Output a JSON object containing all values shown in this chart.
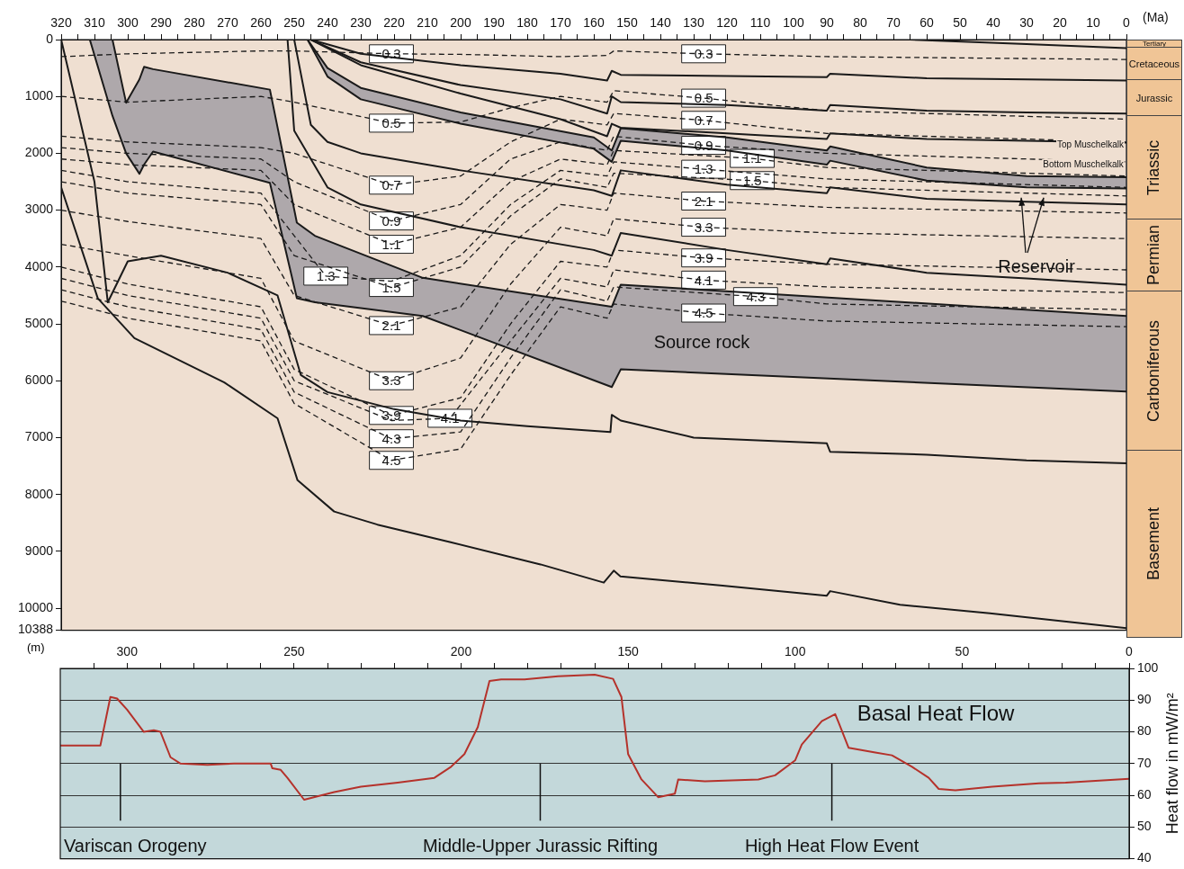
{
  "chart_data": [
    {
      "type": "line",
      "xlabel": "(Ma)",
      "ylabel": "(m)",
      "legend": false,
      "grid": false,
      "xlim": [
        320,
        0
      ],
      "xticks": [
        320,
        {
          "value": 315,
          "label": null
        },
        310,
        {
          "value": 305,
          "label": null
        },
        300,
        {
          "value": 295,
          "label": null
        },
        290,
        {
          "value": 285,
          "label": null
        },
        280,
        {
          "value": 275,
          "label": null
        },
        270,
        {
          "value": 265,
          "label": null
        },
        260,
        {
          "value": 255,
          "label": null
        },
        250,
        {
          "value": 245,
          "label": null
        },
        240,
        {
          "value": 235,
          "label": null
        },
        230,
        {
          "value": 225,
          "label": null
        },
        220,
        {
          "value": 215,
          "label": null
        },
        210,
        {
          "value": 205,
          "label": null
        },
        200,
        {
          "value": 195,
          "label": null
        },
        190,
        {
          "value": 185,
          "label": null
        },
        180,
        {
          "value": 175,
          "label": null
        },
        170,
        {
          "value": 165,
          "label": null
        },
        160,
        {
          "value": 155,
          "label": null
        },
        150,
        {
          "value": 145,
          "label": null
        },
        140,
        {
          "value": 135,
          "label": null
        },
        130,
        {
          "value": 125,
          "label": null
        },
        120,
        {
          "value": 115,
          "label": null
        },
        110,
        {
          "value": 105,
          "label": null
        },
        100,
        {
          "value": 95,
          "label": null
        },
        90,
        {
          "value": 85,
          "label": null
        },
        80,
        {
          "value": 75,
          "label": null
        },
        70,
        {
          "value": 65,
          "label": null
        },
        60,
        {
          "value": 55,
          "label": null
        },
        50,
        {
          "value": 45,
          "label": null
        },
        40,
        {
          "value": 35,
          "label": null
        },
        30,
        {
          "value": 25,
          "label": null
        },
        20,
        {
          "value": 15,
          "label": null
        },
        10,
        {
          "value": 5,
          "label": null
        },
        0
      ],
      "ylim": [
        10388,
        0
      ],
      "yticks": [
        0,
        1000,
        2000,
        3000,
        4000,
        5000,
        6000,
        7000,
        8000,
        9000,
        10000,
        10388
      ],
      "series": [
        {
          "color": "#1a1a1a",
          "x": [
            65,
            30,
            0
          ],
          "values": [
            0,
            80,
            150
          ]
        },
        {
          "color": "#1a1a1a",
          "x": [
            245,
            230,
            200,
            170,
            156,
            154.6,
            151.9,
            120,
            90,
            89,
            60,
            30,
            0
          ],
          "values": [
            0,
            250,
            450,
            600,
            720,
            550,
            620,
            640,
            660,
            600,
            680,
            700,
            720
          ]
        },
        {
          "color": "#1a1a1a",
          "x": [
            245,
            230,
            200,
            170,
            156,
            154.6,
            151.9,
            120,
            90,
            89,
            60,
            30,
            0
          ],
          "values": [
            0,
            400,
            800,
            1050,
            1300,
            1000,
            1100,
            1150,
            1250,
            1150,
            1250,
            1280,
            1300
          ]
        },
        {
          "color": "#1a1a1a",
          "x": [
            245,
            230,
            200,
            170,
            156,
            154.6,
            151.9,
            120,
            90,
            89,
            60,
            30,
            0
          ],
          "values": [
            0,
            450,
            950,
            1400,
            1700,
            1480,
            1550,
            1650,
            1750,
            1650,
            1750,
            1780,
            1810
          ]
        },
        {
          "color": "#1a1a1a",
          "x": [
            246,
            240,
            230,
            200,
            160,
            154.6,
            151.9,
            120,
            90,
            89,
            60,
            30,
            0
          ],
          "values": [
            0,
            500,
            850,
            1280,
            1720,
            1950,
            1560,
            1720,
            1950,
            1880,
            2250,
            2400,
            2420
          ],
          "upper": [
            0,
            500,
            850,
            1280,
            1720,
            1950,
            1560,
            1720,
            1950,
            1880,
            2250,
            2400,
            2420
          ],
          "lower": [
            0,
            650,
            1050,
            1480,
            1920,
            2150,
            1780,
            1950,
            2200,
            2130,
            2480,
            2600,
            2620
          ]
        },
        {
          "color": "#1a1a1a",
          "x": [
            246,
            240,
            230,
            200,
            160,
            154.6,
            151.9,
            120,
            90,
            89,
            60,
            30,
            0
          ],
          "values": [
            0,
            650,
            1050,
            1480,
            1920,
            2150,
            1780,
            1950,
            2200,
            2130,
            2480,
            2600,
            2620
          ]
        },
        {
          "color": "#1a1a1a",
          "x": [
            250,
            245,
            240,
            230,
            200,
            160,
            154.6,
            151.9,
            120,
            90,
            89,
            60,
            30,
            0
          ],
          "values": [
            0,
            1500,
            1800,
            2000,
            2300,
            2650,
            2750,
            2300,
            2550,
            2700,
            2600,
            2800,
            2850,
            2900
          ]
        },
        {
          "color": "#1a1a1a",
          "x": [
            252,
            250,
            240,
            230,
            200,
            160,
            154.6,
            151.9,
            120,
            90,
            89,
            60,
            30,
            0
          ],
          "values": [
            0,
            1600,
            2600,
            2900,
            3300,
            3700,
            3800,
            3400,
            3700,
            3950,
            3850,
            4100,
            4200,
            4310
          ]
        },
        {
          "color": "#1a1a1a",
          "x": [
            311.4,
            304.6,
            300.5,
            296.5,
            295.1,
            292.4,
            257.3,
            249.2,
            243.8,
            211.4,
            154.6,
            151.9,
            0
          ],
          "values": [
            0,
            0,
            1110,
            700,
            480,
            520,
            880,
            3220,
            3450,
            4190,
            4700,
            4310,
            4860
          ],
          "upper": [
            0,
            0,
            1110,
            700,
            480,
            520,
            880,
            3220,
            3450,
            4190,
            4700,
            4310,
            4860
          ],
          "lower": [
            0,
            1340,
            2000,
            2360,
            2200,
            1970,
            2520,
            4550,
            4620,
            4860,
            6110,
            5800,
            6190
          ]
        },
        {
          "color": "#1a1a1a",
          "x": [
            311.4,
            304.6,
            300.5,
            296.5,
            295.1,
            292.4,
            257.3,
            249.2,
            243.8,
            211.4,
            154.6,
            151.9,
            0
          ],
          "values": [
            0,
            1340,
            2000,
            2360,
            2200,
            1970,
            2520,
            4550,
            4620,
            4860,
            6110,
            5800,
            6190
          ]
        },
        {
          "color": "#1a1a1a",
          "x": [
            320,
            310,
            306,
            300,
            290,
            270,
            255,
            248,
            240,
            220,
            200,
            180,
            155,
            154.6,
            151.9,
            130,
            90,
            89,
            60,
            30,
            0
          ],
          "values": [
            0,
            2500,
            4620,
            3900,
            3800,
            4100,
            4500,
            5900,
            6200,
            6500,
            6700,
            6800,
            6900,
            6600,
            6700,
            7000,
            7100,
            7250,
            7300,
            7400,
            7450
          ]
        },
        {
          "color": "#1a1a1a",
          "x": [
            320,
            309,
            298,
            271,
            255,
            249,
            238,
            225,
            203,
            176,
            157,
            154,
            152,
            122,
            90,
            89,
            68,
            41,
            0
          ],
          "values": [
            2600,
            4550,
            5250,
            6030,
            6660,
            7750,
            8300,
            8530,
            8840,
            9230,
            9550,
            9340,
            9440,
            9600,
            9780,
            9700,
            9940,
            10090,
            10350
          ]
        },
        {
          "color": "#1a1a1a",
          "line_style": "dashed",
          "x": [
            320,
            300,
            260,
            250,
            220.8,
            200,
            185,
            170,
            156,
            154,
            127,
            90,
            0
          ],
          "values": [
            300,
            250,
            200,
            200,
            250,
            260,
            280,
            300,
            280,
            200,
            250,
            300,
            350
          ]
        },
        {
          "color": "#1a1a1a",
          "line_style": "dashed",
          "x": [
            320,
            300,
            260,
            250,
            220.8,
            200,
            185,
            170,
            156,
            154,
            127,
            90,
            0
          ],
          "values": [
            1000,
            1100,
            1000,
            1100,
            1470,
            1450,
            1200,
            1000,
            1100,
            900,
            1030,
            1250,
            1400
          ]
        },
        {
          "color": "#1a1a1a",
          "line_style": "dashed",
          "x": [
            320,
            300,
            260,
            250,
            220.8,
            200,
            185,
            170,
            156,
            154,
            127,
            90,
            0
          ],
          "values": [
            1700,
            1800,
            1900,
            2000,
            2560,
            2400,
            1800,
            1400,
            1500,
            1300,
            1420,
            1650,
            1800
          ]
        },
        {
          "color": "#1a1a1a",
          "line_style": "dashed",
          "x": [
            320,
            300,
            260,
            250,
            220.8,
            200,
            185,
            170,
            156,
            154,
            127,
            90,
            0
          ],
          "values": [
            1900,
            2000,
            2100,
            2500,
            3190,
            2900,
            2100,
            1800,
            1950,
            1700,
            1860,
            2000,
            2150
          ]
        },
        {
          "color": "#1a1a1a",
          "line_style": "dashed",
          "x": [
            320,
            300,
            260,
            250,
            220.8,
            200,
            185,
            170,
            156,
            154,
            112.4,
            90,
            0
          ],
          "values": [
            2100,
            2200,
            2300,
            2900,
            3600,
            3300,
            2500,
            2100,
            2200,
            1950,
            2090,
            2250,
            2400
          ]
        },
        {
          "color": "#1a1a1a",
          "line_style": "dashed",
          "x": [
            320,
            300,
            260,
            240.5,
            220.8,
            200,
            185,
            170,
            156,
            154,
            127,
            90,
            0
          ],
          "values": [
            2300,
            2500,
            2700,
            4160,
            4250,
            3800,
            2900,
            2300,
            2400,
            2150,
            2280,
            2450,
            2600
          ]
        },
        {
          "color": "#1a1a1a",
          "line_style": "dashed",
          "x": [
            320,
            300,
            260,
            250,
            220.8,
            200,
            185,
            170,
            156,
            154,
            112.4,
            90,
            0
          ],
          "values": [
            2500,
            2700,
            2900,
            3800,
            4360,
            4000,
            3100,
            2450,
            2600,
            2350,
            2480,
            2600,
            2750
          ]
        },
        {
          "color": "#1a1a1a",
          "line_style": "dashed",
          "x": [
            320,
            300,
            260,
            250,
            220.8,
            200,
            185,
            170,
            156,
            154,
            127,
            90,
            0
          ],
          "values": [
            3000,
            3200,
            3500,
            4500,
            5030,
            4700,
            3600,
            2900,
            3000,
            2700,
            2840,
            2950,
            3050
          ]
        },
        {
          "color": "#1a1a1a",
          "line_style": "dashed",
          "x": [
            320,
            300,
            260,
            250,
            220.8,
            200,
            185,
            170,
            156,
            154,
            127,
            90,
            0
          ],
          "values": [
            3600,
            3800,
            4200,
            5300,
            6000,
            5600,
            4300,
            3300,
            3450,
            3150,
            3300,
            3400,
            3500
          ]
        },
        {
          "color": "#1a1a1a",
          "line_style": "dashed",
          "x": [
            320,
            300,
            260,
            250,
            220.8,
            200,
            185,
            170,
            156,
            154,
            127,
            90,
            0
          ],
          "values": [
            4000,
            4300,
            4700,
            5800,
            6610,
            6300,
            5000,
            3900,
            4000,
            3700,
            3840,
            3950,
            4050
          ]
        },
        {
          "color": "#1a1a1a",
          "line_style": "dashed",
          "x": [
            320,
            300,
            260,
            250,
            220.8,
            203.2,
            185,
            170,
            156,
            154,
            127,
            90,
            0
          ],
          "values": [
            4200,
            4500,
            4900,
            6000,
            6700,
            6660,
            5300,
            4200,
            4350,
            4050,
            4230,
            4350,
            4450
          ]
        },
        {
          "color": "#1a1a1a",
          "line_style": "dashed",
          "x": [
            320,
            300,
            260,
            250,
            220.8,
            200,
            185,
            170,
            156,
            154,
            111.4,
            90,
            0
          ],
          "values": [
            4400,
            4700,
            5100,
            6200,
            7020,
            6900,
            5600,
            4400,
            4600,
            4350,
            4520,
            4650,
            4750
          ]
        },
        {
          "color": "#1a1a1a",
          "line_style": "dashed",
          "x": [
            320,
            300,
            260,
            250,
            220.8,
            200,
            185,
            170,
            156,
            154,
            127,
            90,
            0
          ],
          "values": [
            4600,
            4900,
            5300,
            6400,
            7400,
            7200,
            5900,
            4700,
            4900,
            4650,
            4810,
            4950,
            5050
          ]
        }
      ],
      "annotations": [
        "Source rock",
        {
          "text": "Reservoir",
          "x": 31.6,
          "y": 2780
        },
        "Top Muschelkalk",
        "Bottom Muschelkalk",
        "Tertiary",
        "Cretaceous",
        "Jurassic",
        "Triassic",
        "Permian",
        "Carboniferous",
        "Basement",
        {
          "text": "0.3",
          "x": 220.8,
          "y": 250
        },
        {
          "text": "0.3",
          "x": 127,
          "y": 250
        },
        {
          "text": "0.5",
          "x": 220.8,
          "y": 1470
        },
        {
          "text": "0.5",
          "x": 127,
          "y": 1030
        },
        {
          "text": "0.7",
          "x": 220.8,
          "y": 2560
        },
        {
          "text": "0.7",
          "x": 127,
          "y": 1420
        },
        {
          "text": "0.9",
          "x": 220.8,
          "y": 3190
        },
        {
          "text": "0.9",
          "x": 127,
          "y": 1860
        },
        {
          "text": "1.1",
          "x": 220.8,
          "y": 3600
        },
        {
          "text": "1.1",
          "x": 112.4,
          "y": 2090
        },
        {
          "text": "1.3",
          "x": 240.5,
          "y": 4160
        },
        {
          "text": "1.3",
          "x": 127,
          "y": 2280
        },
        {
          "text": "1.5",
          "x": 220.8,
          "y": 4360
        },
        {
          "text": "1.5",
          "x": 112.4,
          "y": 2480
        },
        {
          "text": "2.1",
          "x": 220.8,
          "y": 5030
        },
        {
          "text": "2.1",
          "x": 127,
          "y": 2840
        },
        {
          "text": "3.3",
          "x": 220.8,
          "y": 6000
        },
        {
          "text": "3.3",
          "x": 127,
          "y": 3300
        },
        {
          "text": "3.9",
          "x": 220.8,
          "y": 6610
        },
        {
          "text": "3.9",
          "x": 127,
          "y": 3840
        },
        {
          "text": "4.1",
          "x": 203.2,
          "y": 6660
        },
        {
          "text": "4.1",
          "x": 127,
          "y": 4230
        },
        {
          "text": "4.3",
          "x": 220.8,
          "y": 7020
        },
        {
          "text": "4.3",
          "x": 111.4,
          "y": 4520
        },
        {
          "text": "4.5",
          "x": 220.8,
          "y": 7400
        },
        {
          "text": "4.5",
          "x": 127,
          "y": 4810
        }
      ]
    },
    {
      "type": "line",
      "legend": false,
      "grid": "y",
      "ylabel": "Heat flow in mW/m²",
      "xlim": [
        320,
        0
      ],
      "xticks": [
        {
          "value": 310,
          "label": null
        },
        300,
        {
          "value": 290,
          "label": null
        },
        {
          "value": 280,
          "label": null
        },
        {
          "value": 270,
          "label": null
        },
        {
          "value": 260,
          "label": null
        },
        250,
        {
          "value": 240,
          "label": null
        },
        {
          "value": 230,
          "label": null
        },
        {
          "value": 220,
          "label": null
        },
        {
          "value": 210,
          "label": null
        },
        200,
        {
          "value": 190,
          "label": null
        },
        {
          "value": 180,
          "label": null
        },
        {
          "value": 170,
          "label": null
        },
        {
          "value": 160,
          "label": null
        },
        150,
        {
          "value": 140,
          "label": null
        },
        {
          "value": 130,
          "label": null
        },
        {
          "value": 120,
          "label": null
        },
        {
          "value": 110,
          "label": null
        },
        100,
        {
          "value": 90,
          "label": null
        },
        {
          "value": 80,
          "label": null
        },
        {
          "value": 70,
          "label": null
        },
        {
          "value": 60,
          "label": null
        },
        50,
        {
          "value": 40,
          "label": null
        },
        {
          "value": 30,
          "label": null
        },
        {
          "value": 20,
          "label": null
        },
        {
          "value": 10,
          "label": null
        },
        0
      ],
      "ylim": [
        40,
        100
      ],
      "yticks": [
        40,
        50,
        60,
        70,
        80,
        90,
        100
      ],
      "x": [
        320,
        308,
        305,
        303,
        300,
        295,
        292,
        290,
        287,
        284,
        276,
        268,
        257,
        256.5,
        254,
        252,
        247,
        238,
        230,
        219,
        208,
        203,
        199,
        195,
        191.5,
        188,
        181,
        171,
        160,
        154.5,
        152,
        150,
        146,
        141,
        136,
        135,
        127,
        111,
        106,
        100,
        98,
        92,
        88,
        87,
        84,
        76,
        71,
        65,
        60,
        57,
        52,
        41,
        27,
        19,
        0
      ],
      "annotations": [
        "Basal Heat Flow"
      ],
      "series": [
        {
          "color": "#b5322b",
          "values": [
            75.7,
            75.7,
            91,
            90.5,
            87,
            80,
            80.5,
            80,
            72,
            70,
            69.6,
            70,
            70,
            68.5,
            68,
            65.5,
            58.6,
            61,
            62.7,
            64,
            65.5,
            69,
            73,
            81.5,
            96,
            96.5,
            96.5,
            97.5,
            98,
            96.7,
            91,
            73,
            65,
            59.4,
            60.5,
            65,
            64.4,
            65,
            66.3,
            71,
            76,
            83.4,
            85.6,
            83,
            75,
            73.5,
            72.6,
            69,
            65.5,
            62,
            61.6,
            62.7,
            63.8,
            64,
            65.2
          ]
        }
      ],
      "ref_lines": [
        {
          "axis": "x",
          "value": 302,
          "label": "Variscan Orogeny"
        },
        {
          "axis": "x",
          "value": 176.3,
          "label": "Middle-Upper Jurassic Rifting"
        },
        {
          "axis": "x",
          "value": 89,
          "label": "High Heat Flow Event"
        }
      ]
    }
  ]
}
